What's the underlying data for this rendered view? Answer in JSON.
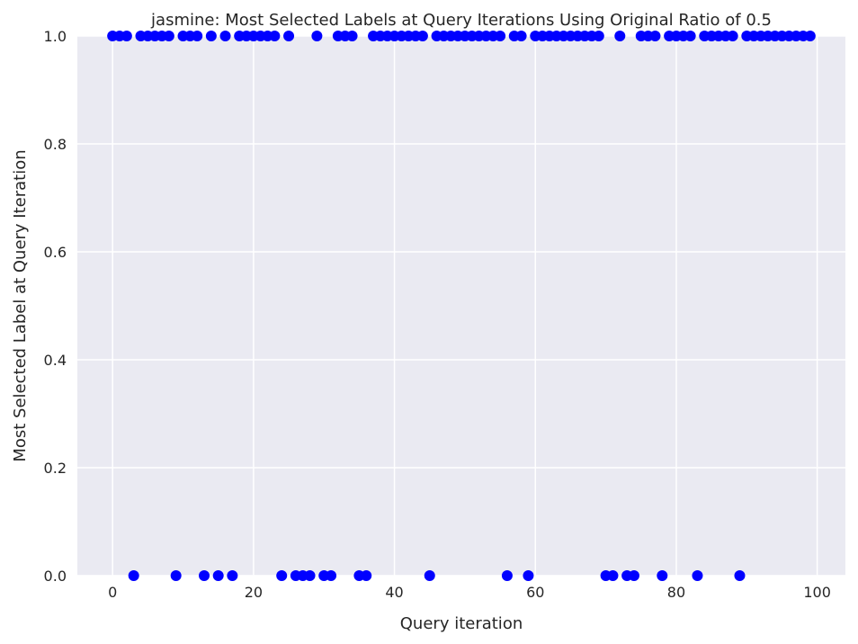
{
  "chart_data": {
    "type": "scatter",
    "title": "jasmine: Most Selected Labels at Query Iterations Using Original Ratio of 0.5",
    "xlabel": "Query iteration",
    "ylabel": "Most Selected Label at Query Iteration",
    "xlim": [
      -5,
      104
    ],
    "ylim": [
      0,
      1
    ],
    "xticks": [
      0,
      20,
      40,
      60,
      80,
      100
    ],
    "yticks": [
      0.0,
      0.2,
      0.4,
      0.6,
      0.8,
      1.0
    ],
    "xtick_labels": [
      "0",
      "20",
      "40",
      "60",
      "80",
      "100"
    ],
    "ytick_labels": [
      "0.0",
      "0.2",
      "0.4",
      "0.6",
      "0.8",
      "1.0"
    ],
    "grid": true,
    "background": "#eaeaf2",
    "grid_color": "#ffffff",
    "marker_color": "#0000ff",
    "x": [
      0,
      1,
      2,
      3,
      4,
      5,
      6,
      7,
      8,
      9,
      10,
      11,
      12,
      13,
      14,
      15,
      16,
      17,
      18,
      19,
      20,
      21,
      22,
      23,
      24,
      25,
      26,
      27,
      28,
      29,
      30,
      31,
      32,
      33,
      34,
      35,
      36,
      37,
      38,
      39,
      40,
      41,
      42,
      43,
      44,
      45,
      46,
      47,
      48,
      49,
      50,
      51,
      52,
      53,
      54,
      55,
      56,
      57,
      58,
      59,
      60,
      61,
      62,
      63,
      64,
      65,
      66,
      67,
      68,
      69,
      70,
      71,
      72,
      73,
      74,
      75,
      76,
      77,
      78,
      79,
      80,
      81,
      82,
      83,
      84,
      85,
      86,
      87,
      88,
      89,
      90,
      91,
      92,
      93,
      94,
      95,
      96,
      97,
      98,
      99
    ],
    "y": [
      1,
      1,
      1,
      0,
      1,
      1,
      1,
      1,
      1,
      0,
      1,
      1,
      1,
      0,
      1,
      0,
      1,
      0,
      1,
      1,
      1,
      1,
      1,
      1,
      0,
      1,
      0,
      0,
      0,
      1,
      0,
      0,
      1,
      1,
      1,
      0,
      0,
      1,
      1,
      1,
      1,
      1,
      1,
      1,
      1,
      0,
      1,
      1,
      1,
      1,
      1,
      1,
      1,
      1,
      1,
      1,
      0,
      1,
      1,
      0,
      1,
      1,
      1,
      1,
      1,
      1,
      1,
      1,
      1,
      1,
      0,
      0,
      1,
      0,
      0,
      1,
      1,
      1,
      0,
      1,
      1,
      1,
      1,
      0,
      1,
      1,
      1,
      1,
      1,
      0,
      1,
      1,
      1,
      1,
      1,
      1,
      1,
      1,
      1,
      1
    ]
  }
}
